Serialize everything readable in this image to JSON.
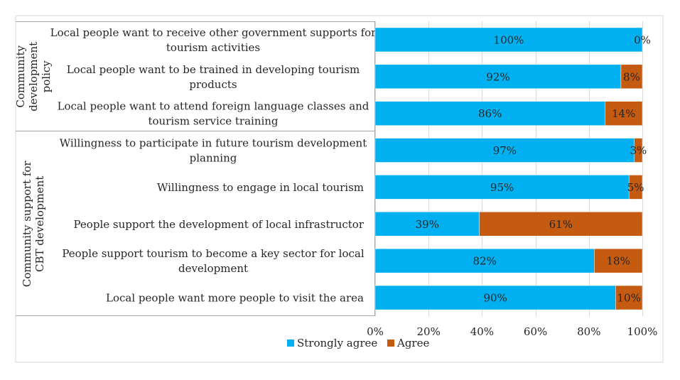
{
  "chart_data": {
    "type": "bar",
    "orientation": "horizontal",
    "stacked": "percent",
    "groups": [
      {
        "label": "Community development policy",
        "categories": [
          "Local people want to receive other government supports for tourism activities",
          "Local people want to be trained in developing tourism products",
          "Local people want to attend foreign language classes and tourism service training"
        ]
      },
      {
        "label": "Community support for CBT development",
        "categories": [
          "Willingness to participate in future tourism development planning",
          "Willingness to engage in local tourism",
          "People support the development of local infrastructor",
          "People support tourism to become a key sector for local development",
          "Local people want more people to visit the area"
        ]
      }
    ],
    "categories": [
      "Local people want to receive other government supports for tourism activities",
      "Local people want to be trained in developing tourism products",
      "Local people want to attend foreign language classes and tourism service training",
      "Willingness to participate in future tourism development planning",
      "Willingness to engage in local tourism",
      "People support the development of local infrastructor",
      "People support tourism to become a key sector for local development",
      "Local people want more people to visit the area"
    ],
    "series": [
      {
        "name": "Strongly agree",
        "color": "#00b0f0",
        "values": [
          100,
          92,
          86,
          97,
          95,
          39,
          82,
          90
        ]
      },
      {
        "name": "Agree",
        "color": "#c55a11",
        "values": [
          0,
          8,
          14,
          3,
          5,
          61,
          18,
          10
        ]
      }
    ],
    "x_ticks": [
      "0%",
      "20%",
      "40%",
      "60%",
      "80%",
      "100%"
    ],
    "xlim": [
      0,
      100
    ],
    "legend_position": "bottom",
    "title": "",
    "xlabel": "",
    "ylabel": ""
  }
}
